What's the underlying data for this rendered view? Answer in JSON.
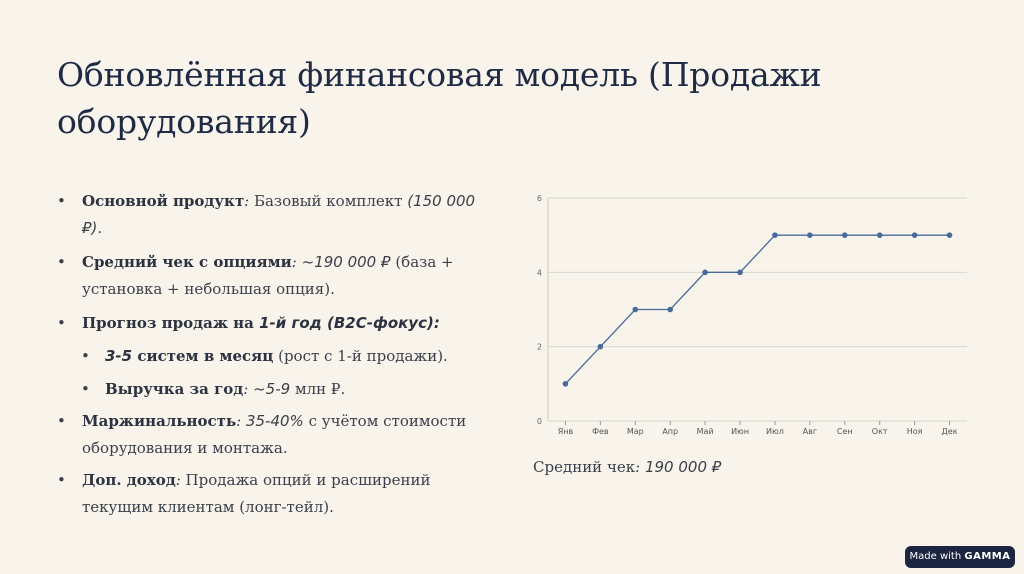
{
  "slide": {
    "title": "Обновлённая финансовая модель (Продажи оборудования)",
    "bullets": [
      {
        "bold": "Основной продукт",
        "sep": ":",
        "rest_pre": " Базовый комплект ",
        "value": "(150 000 ₽)",
        "rest_post": "."
      },
      {
        "bold": "Средний чек с опциями",
        "sep": ":",
        "rest_pre": " ",
        "value": "~190 000 ₽",
        "rest_post": " (база + установка + небольшая опция)."
      },
      {
        "bold_pre": "Прогноз продаж на ",
        "bold_italic": "1-й год (B2C-фокус):"
      },
      {
        "bold_italic_val": "3-5",
        "bold": " систем в месяц",
        "rest": " (рост с 1-й продажи)."
      },
      {
        "bold": "Выручка за год",
        "sep": ":",
        "value": " ~5-9",
        "rest": " млн ₽."
      },
      {
        "bold": "Маржинальность",
        "sep": ":",
        "value": " 35-40%",
        "rest": " с учётом стоимости оборудования и монтажа."
      },
      {
        "bold": "Доп. доход",
        "sep": ":",
        "rest": " Продажа опций и расширений текущим клиентам (лонг-тейл)."
      }
    ],
    "caption_label": "Средний чек",
    "caption_sep": ":",
    "caption_value": " 190 000 ₽",
    "badge_made_with": "Made with",
    "badge_brand": "GAMMA"
  },
  "chart_data": {
    "type": "line",
    "categories": [
      "Янв",
      "Фев",
      "Мар",
      "Апр",
      "Май",
      "Июн",
      "Июл",
      "Авг",
      "Сен",
      "Окт",
      "Ноя",
      "Дек"
    ],
    "values": [
      1,
      2,
      3,
      3,
      4,
      4,
      5,
      5,
      5,
      5,
      5,
      5
    ],
    "ylim": [
      0,
      6
    ],
    "yticks": [
      0,
      2,
      4,
      6
    ],
    "grid": true,
    "title": "",
    "xlabel": "",
    "ylabel": "",
    "line_color": "#4a6a9a",
    "grid_color": "#d9d6cf"
  }
}
